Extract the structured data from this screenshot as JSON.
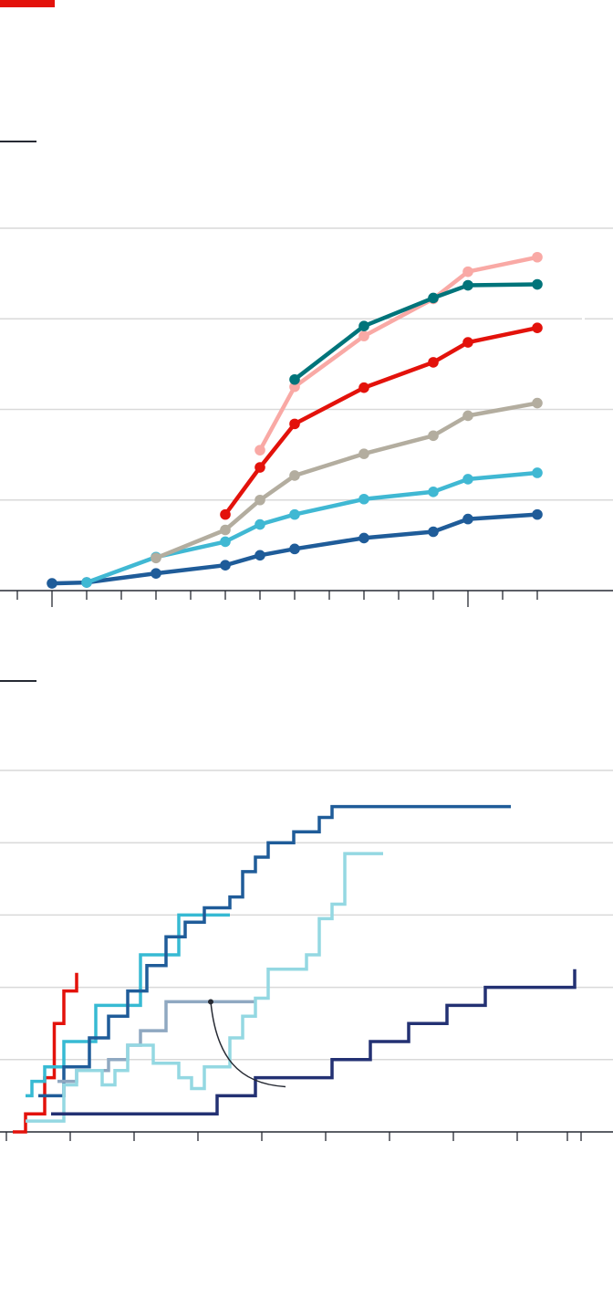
{
  "brand": {
    "accent_color": "#e3120b"
  },
  "chart_data": [
    {
      "type": "line",
      "title": "",
      "xlabel": "",
      "ylabel": "",
      "y_gridlines": [
        100,
        200,
        300,
        400
      ],
      "grid": true,
      "legend": "none",
      "xlim": [
        -0.5,
        15.2
      ],
      "ylim": [
        0,
        400
      ],
      "series": [
        {
          "color": "#1f5c99",
          "x": [
            0.5,
            1.5,
            3.5,
            5.5,
            6.5,
            7.5,
            9.5,
            11.5,
            12.5,
            14.5
          ],
          "y": [
            8,
            9,
            19,
            28,
            39,
            46,
            58,
            65,
            79,
            84
          ]
        },
        {
          "color": "#40b8d3",
          "x": [
            1.5,
            3.5,
            5.5,
            6.5,
            7.5,
            9.5,
            11.5,
            12.5,
            14.5
          ],
          "y": [
            9,
            37,
            54,
            73,
            84,
            101,
            109,
            123,
            130
          ]
        },
        {
          "color": "#b3ad9f",
          "x": [
            3.5,
            5.5,
            6.5,
            7.5,
            9.5,
            11.5,
            12.5,
            14.5
          ],
          "y": [
            36,
            67,
            100,
            127,
            151,
            171,
            193,
            207
          ]
        },
        {
          "color": "#e3120b",
          "x": [
            5.5,
            6.5,
            7.5,
            9.5,
            11.5,
            12.5,
            14.5
          ],
          "y": [
            84,
            136,
            184,
            224,
            252,
            274,
            290
          ]
        },
        {
          "color": "#f9a9a5",
          "x": [
            6.5,
            7.5,
            9.5,
            11.5,
            12.5,
            14.5
          ],
          "y": [
            155,
            225,
            281,
            322,
            352,
            368
          ]
        },
        {
          "color": "#00747a",
          "x": [
            7.5,
            9.5,
            11.5,
            12.5,
            14.5
          ],
          "y": [
            233,
            292,
            323,
            337,
            338
          ]
        }
      ]
    },
    {
      "type": "line",
      "step": true,
      "title": "",
      "xlabel": "",
      "ylabel": "",
      "y_gridlines": [
        1,
        2,
        3,
        4,
        5
      ],
      "grid": true,
      "legend": "none",
      "xlim": [
        0,
        9.6
      ],
      "ylim": [
        0,
        5
      ],
      "series": [
        {
          "color": "#e3120b",
          "x": [
            0.1,
            0.3,
            0.6,
            0.75,
            0.9,
            1.1,
            1.1
          ],
          "y": [
            0,
            0.25,
            0.75,
            1.5,
            1.95,
            2.2,
            2.2
          ]
        },
        {
          "color": "#37bad3",
          "x": [
            0.3,
            0.4,
            0.6,
            0.9,
            1.4,
            2.1,
            2.7,
            3.5
          ],
          "y": [
            0.5,
            0.7,
            0.9,
            1.25,
            1.75,
            2.45,
            3,
            3
          ]
        },
        {
          "color": "#1f5c99",
          "x": [
            0.5,
            0.9,
            1.3,
            1.6,
            1.9,
            2.2,
            2.5,
            2.8,
            3.1,
            3.5,
            3.7,
            3.9,
            4.1,
            4.5,
            4.9,
            5.1,
            7.9
          ],
          "y": [
            0.5,
            0.9,
            1.3,
            1.6,
            1.95,
            2.3,
            2.7,
            2.9,
            3.1,
            3.25,
            3.6,
            3.8,
            4,
            4.15,
            4.35,
            4.5,
            4.5
          ]
        },
        {
          "color": "#8fa8c1",
          "x": [
            0.8,
            1.1,
            1.6,
            1.9,
            2.1,
            2.5,
            3.9
          ],
          "y": [
            0.7,
            0.85,
            1,
            1.2,
            1.4,
            1.8,
            1.8
          ]
        },
        {
          "color": "#94d8e2",
          "x": [
            0.3,
            0.9,
            1.1,
            1.3,
            1.5,
            1.7,
            1.9,
            2.3,
            2.7,
            2.9,
            3.1,
            3.5,
            3.7,
            3.9,
            4.1,
            4.7,
            4.9,
            5.1,
            5.3,
            5.9
          ],
          "y": [
            0.15,
            0.65,
            0.85,
            0.85,
            0.65,
            0.85,
            1.2,
            0.95,
            0.75,
            0.6,
            0.9,
            1.3,
            1.6,
            1.85,
            2.25,
            2.45,
            2.95,
            3.15,
            3.85,
            3.85
          ]
        },
        {
          "color": "#233173",
          "x": [
            0.7,
            2.7,
            3.3,
            3.9,
            5.1,
            5.7,
            6.3,
            6.9,
            7.5,
            8.9
          ],
          "y": [
            0.25,
            0.25,
            0.5,
            0.75,
            1,
            1.25,
            1.5,
            1.75,
            2,
            2.25
          ]
        }
      ],
      "callout": {
        "target_x": 3.2,
        "target_y": 1.8
      }
    }
  ]
}
